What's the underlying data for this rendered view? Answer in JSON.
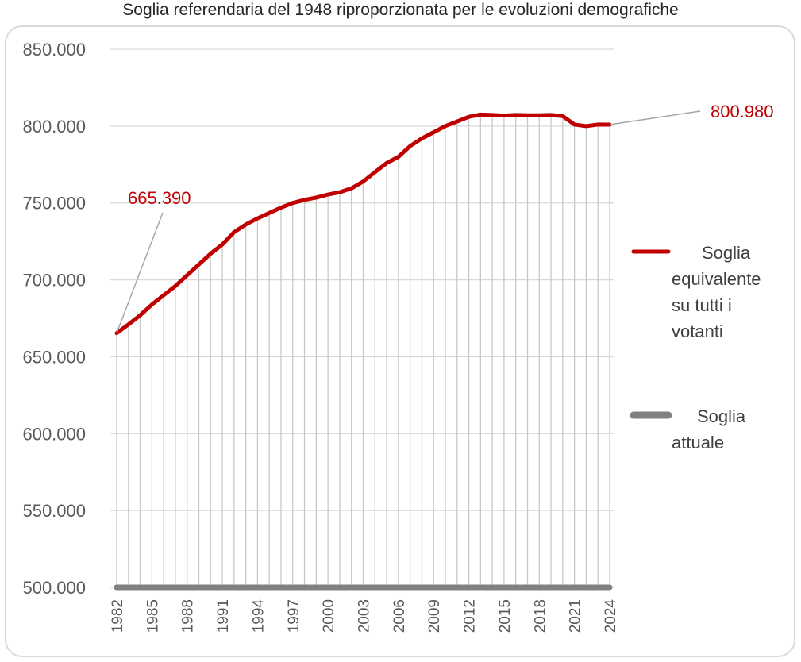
{
  "chart_data": {
    "type": "line",
    "title": "Soglia referendaria del 1948 riproporzionata per le evoluzioni demografiche",
    "xlabel": "",
    "ylabel": "",
    "ylim": [
      500000,
      850000
    ],
    "yticks": [
      500000,
      550000,
      600000,
      650000,
      700000,
      750000,
      800000,
      850000
    ],
    "ytick_labels": [
      "500.000",
      "550.000",
      "600.000",
      "650.000",
      "700.000",
      "750.000",
      "800.000",
      "850.000"
    ],
    "x": [
      1982,
      1983,
      1984,
      1985,
      1986,
      1987,
      1988,
      1989,
      1990,
      1991,
      1992,
      1993,
      1994,
      1995,
      1996,
      1997,
      1998,
      1999,
      2000,
      2001,
      2002,
      2003,
      2004,
      2005,
      2006,
      2007,
      2008,
      2009,
      2010,
      2011,
      2012,
      2013,
      2014,
      2015,
      2016,
      2017,
      2018,
      2019,
      2020,
      2021,
      2022,
      2023,
      2024
    ],
    "xtick_labels": [
      "1982",
      "1985",
      "1988",
      "1991",
      "1994",
      "1997",
      "2000",
      "2003",
      "2006",
      "2009",
      "2012",
      "2015",
      "2018",
      "2021",
      "2024"
    ],
    "grid": "vertical",
    "legend_position": "right",
    "series": [
      {
        "name": "Soglia equivalente su tutti i votanti",
        "color": "#c00000",
        "values": [
          665390,
          671000,
          677000,
          684000,
          690000,
          696000,
          703000,
          710000,
          717000,
          723000,
          731000,
          736000,
          740000,
          743500,
          747000,
          750000,
          752000,
          753500,
          755500,
          757000,
          759500,
          764000,
          770000,
          776000,
          780000,
          787000,
          792000,
          796000,
          800000,
          803000,
          806000,
          807500,
          807200,
          806800,
          807200,
          807000,
          807000,
          807200,
          806500,
          801000,
          800000,
          801000,
          800980
        ]
      },
      {
        "name": "Soglia attuale",
        "color": "#808080",
        "values": [
          500000,
          500000,
          500000,
          500000,
          500000,
          500000,
          500000,
          500000,
          500000,
          500000,
          500000,
          500000,
          500000,
          500000,
          500000,
          500000,
          500000,
          500000,
          500000,
          500000,
          500000,
          500000,
          500000,
          500000,
          500000,
          500000,
          500000,
          500000,
          500000,
          500000,
          500000,
          500000,
          500000,
          500000,
          500000,
          500000,
          500000,
          500000,
          500000,
          500000,
          500000,
          500000,
          500000
        ]
      }
    ],
    "annotations": [
      {
        "text": "665.390",
        "x": 1982
      },
      {
        "text": "800.980",
        "x": 2024
      }
    ]
  }
}
